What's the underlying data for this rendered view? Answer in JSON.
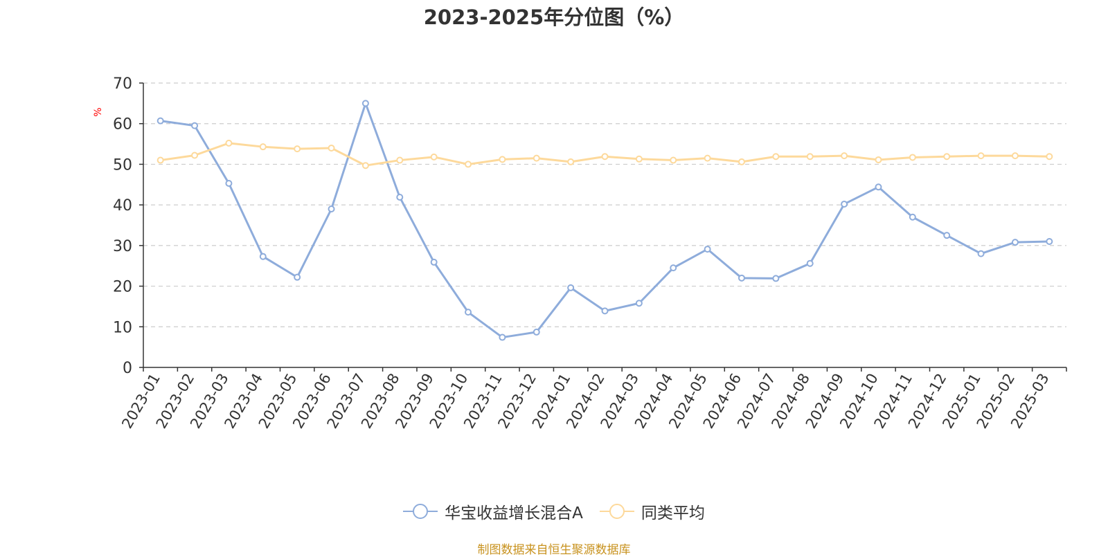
{
  "title": "2023-2025年分位图（%）",
  "source": "制图数据来自恒生聚源数据库",
  "colors": {
    "series1": "#8eacdb",
    "series2": "#fdd99b",
    "unit": "#ff0000",
    "grid": "#cccccc",
    "axis": "#333333"
  },
  "chart_data": {
    "type": "line",
    "title": "2023-2025年分位图（%）",
    "ylabel": "%",
    "ylim": [
      0,
      70
    ],
    "yticks": [
      0,
      10,
      20,
      30,
      40,
      50,
      60,
      70
    ],
    "grid": true,
    "legend_position": "bottom",
    "categories": [
      "2023-01",
      "2023-02",
      "2023-03",
      "2023-04",
      "2023-05",
      "2023-06",
      "2023-07",
      "2023-08",
      "2023-09",
      "2023-10",
      "2023-11",
      "2023-12",
      "2024-01",
      "2024-02",
      "2024-03",
      "2024-04",
      "2024-05",
      "2024-06",
      "2024-07",
      "2024-08",
      "2024-09",
      "2024-10",
      "2024-11",
      "2024-12",
      "2025-01",
      "2025-02",
      "2025-03"
    ],
    "series": [
      {
        "name": "华宝收益增长混合A",
        "values": [
          60.7,
          59.5,
          45.3,
          27.3,
          22.2,
          39.0,
          65.0,
          41.9,
          25.9,
          13.6,
          7.4,
          8.7,
          19.6,
          13.9,
          15.8,
          24.5,
          29.1,
          22.0,
          21.9,
          25.6,
          40.2,
          44.4,
          37.0,
          32.5,
          28.0,
          30.8,
          31.0
        ]
      },
      {
        "name": "同类平均",
        "values": [
          51.0,
          52.2,
          55.2,
          54.3,
          53.8,
          54.0,
          49.7,
          51.0,
          51.8,
          50.0,
          51.2,
          51.5,
          50.6,
          51.9,
          51.3,
          51.0,
          51.5,
          50.6,
          51.9,
          51.9,
          52.1,
          51.1,
          51.7,
          51.9,
          52.1,
          52.1,
          51.9
        ]
      }
    ]
  }
}
